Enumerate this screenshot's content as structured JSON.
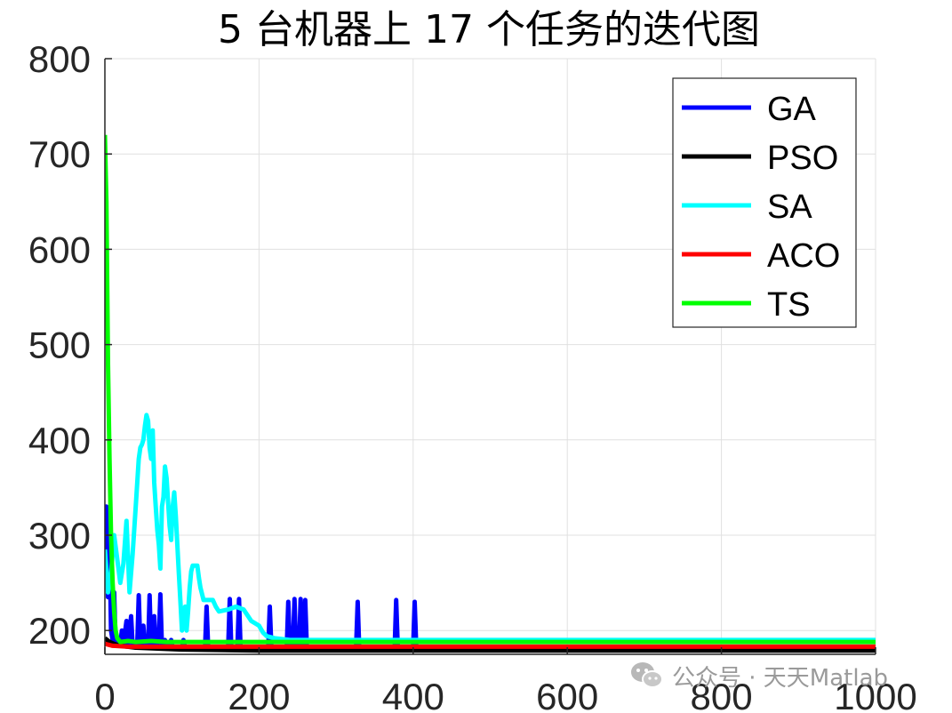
{
  "chart_data": {
    "type": "line",
    "title": "5 台机器上 17 个任务的迭代图",
    "xlabel": "",
    "ylabel": "",
    "xlim": [
      0,
      1000
    ],
    "ylim": [
      175,
      800
    ],
    "xticks": [
      0,
      200,
      400,
      600,
      800,
      1000
    ],
    "yticks": [
      200,
      300,
      400,
      500,
      600,
      700,
      800
    ],
    "grid": true,
    "legend_position": "top-right",
    "series": [
      {
        "name": "GA",
        "color": "#0000ff",
        "points": [
          [
            0,
            285
          ],
          [
            2,
            330
          ],
          [
            4,
            235
          ],
          [
            6,
            300
          ],
          [
            8,
            200
          ],
          [
            10,
            190
          ],
          [
            12,
            240
          ],
          [
            14,
            185
          ],
          [
            16,
            190
          ],
          [
            20,
            185
          ],
          [
            22,
            200
          ],
          [
            24,
            185
          ],
          [
            28,
            210
          ],
          [
            30,
            185
          ],
          [
            34,
            215
          ],
          [
            36,
            185
          ],
          [
            40,
            182
          ],
          [
            42,
            185
          ],
          [
            44,
            237
          ],
          [
            46,
            182
          ],
          [
            50,
            205
          ],
          [
            52,
            182
          ],
          [
            56,
            182
          ],
          [
            58,
            237
          ],
          [
            60,
            182
          ],
          [
            64,
            215
          ],
          [
            66,
            182
          ],
          [
            70,
            190
          ],
          [
            72,
            238
          ],
          [
            74,
            182
          ],
          [
            78,
            190
          ],
          [
            80,
            182
          ],
          [
            84,
            182
          ],
          [
            86,
            190
          ],
          [
            88,
            182
          ],
          [
            100,
            182
          ],
          [
            102,
            190
          ],
          [
            104,
            182
          ],
          [
            130,
            182
          ],
          [
            132,
            225
          ],
          [
            134,
            182
          ],
          [
            160,
            182
          ],
          [
            162,
            233
          ],
          [
            164,
            182
          ],
          [
            172,
            182
          ],
          [
            174,
            233
          ],
          [
            176,
            182
          ],
          [
            212,
            182
          ],
          [
            214,
            225
          ],
          [
            216,
            182
          ],
          [
            236,
            182
          ],
          [
            238,
            230
          ],
          [
            240,
            182
          ],
          [
            244,
            182
          ],
          [
            246,
            233
          ],
          [
            248,
            182
          ],
          [
            252,
            182
          ],
          [
            254,
            233
          ],
          [
            256,
            182
          ],
          [
            258,
            182
          ],
          [
            260,
            232
          ],
          [
            262,
            182
          ],
          [
            326,
            182
          ],
          [
            328,
            230
          ],
          [
            330,
            182
          ],
          [
            376,
            182
          ],
          [
            378,
            232
          ],
          [
            380,
            182
          ],
          [
            400,
            182
          ],
          [
            402,
            230
          ],
          [
            404,
            182
          ],
          [
            1000,
            182
          ]
        ]
      },
      {
        "name": "PSO",
        "color": "#000000",
        "points": [
          [
            0,
            192
          ],
          [
            6,
            188
          ],
          [
            12,
            186
          ],
          [
            20,
            184
          ],
          [
            40,
            182
          ],
          [
            100,
            180
          ],
          [
            200,
            179
          ],
          [
            1000,
            179
          ]
        ]
      },
      {
        "name": "SA",
        "color": "#00ffff",
        "points": [
          [
            0,
            285
          ],
          [
            4,
            240
          ],
          [
            8,
            260
          ],
          [
            12,
            300
          ],
          [
            16,
            275
          ],
          [
            20,
            250
          ],
          [
            24,
            270
          ],
          [
            28,
            315
          ],
          [
            32,
            240
          ],
          [
            36,
            280
          ],
          [
            40,
            330
          ],
          [
            44,
            380
          ],
          [
            46,
            392
          ],
          [
            48,
            395
          ],
          [
            50,
            400
          ],
          [
            52,
            415
          ],
          [
            54,
            426
          ],
          [
            56,
            420
          ],
          [
            58,
            392
          ],
          [
            60,
            380
          ],
          [
            62,
            410
          ],
          [
            64,
            355
          ],
          [
            66,
            330
          ],
          [
            68,
            305
          ],
          [
            70,
            290
          ],
          [
            72,
            265
          ],
          [
            74,
            330
          ],
          [
            76,
            340
          ],
          [
            78,
            372
          ],
          [
            80,
            360
          ],
          [
            82,
            335
          ],
          [
            84,
            310
          ],
          [
            86,
            295
          ],
          [
            88,
            330
          ],
          [
            90,
            345
          ],
          [
            92,
            320
          ],
          [
            94,
            290
          ],
          [
            96,
            260
          ],
          [
            98,
            230
          ],
          [
            100,
            200
          ],
          [
            102,
            215
          ],
          [
            104,
            225
          ],
          [
            106,
            200
          ],
          [
            108,
            220
          ],
          [
            110,
            245
          ],
          [
            112,
            262
          ],
          [
            114,
            268
          ],
          [
            116,
            268
          ],
          [
            120,
            268
          ],
          [
            122,
            255
          ],
          [
            124,
            245
          ],
          [
            128,
            232
          ],
          [
            140,
            232
          ],
          [
            144,
            225
          ],
          [
            148,
            220
          ],
          [
            160,
            222
          ],
          [
            170,
            225
          ],
          [
            180,
            222
          ],
          [
            190,
            210
          ],
          [
            200,
            205
          ],
          [
            205,
            198
          ],
          [
            210,
            194
          ],
          [
            220,
            192
          ],
          [
            240,
            190
          ],
          [
            300,
            190
          ],
          [
            400,
            190
          ],
          [
            1000,
            190
          ]
        ]
      },
      {
        "name": "ACO",
        "color": "#ff0000",
        "points": [
          [
            0,
            186
          ],
          [
            10,
            184
          ],
          [
            30,
            183
          ],
          [
            60,
            183
          ],
          [
            100,
            183
          ],
          [
            200,
            183
          ],
          [
            400,
            183
          ],
          [
            1000,
            183
          ]
        ]
      },
      {
        "name": "TS",
        "color": "#00ff00",
        "points": [
          [
            0,
            720
          ],
          [
            2,
            650
          ],
          [
            4,
            480
          ],
          [
            6,
            380
          ],
          [
            8,
            300
          ],
          [
            10,
            250
          ],
          [
            12,
            220
          ],
          [
            14,
            200
          ],
          [
            16,
            192
          ],
          [
            18,
            190
          ],
          [
            20,
            188
          ],
          [
            30,
            189
          ],
          [
            40,
            188
          ],
          [
            60,
            189
          ],
          [
            80,
            188
          ],
          [
            100,
            188
          ],
          [
            200,
            188
          ],
          [
            400,
            188
          ],
          [
            600,
            188
          ],
          [
            800,
            188
          ],
          [
            1000,
            188
          ]
        ]
      }
    ]
  },
  "watermark": {
    "icon": "wechat-icon",
    "text": "公众号 · 天天Matlab"
  }
}
